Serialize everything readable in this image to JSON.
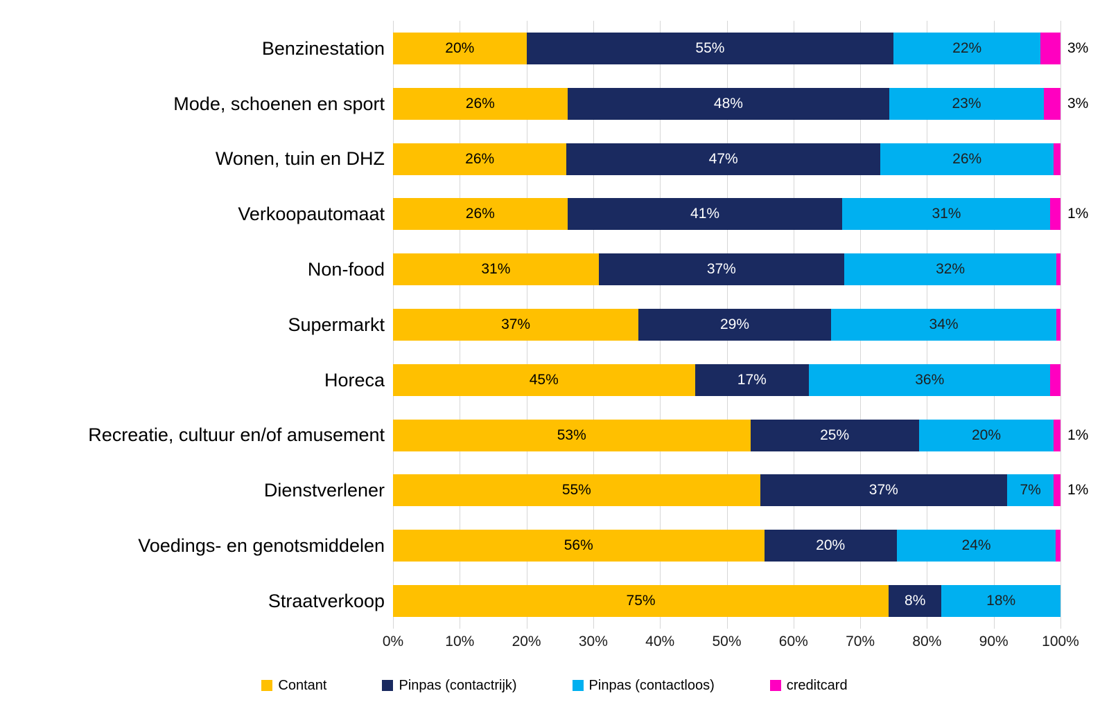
{
  "chart_data": {
    "type": "bar",
    "orientation": "horizontal",
    "stacked": true,
    "grid": true,
    "legend_position": "bottom",
    "title": "",
    "xlabel": "",
    "ylabel": "",
    "xlim": [
      0,
      100
    ],
    "x_ticks": [
      "0%",
      "10%",
      "20%",
      "30%",
      "40%",
      "50%",
      "60%",
      "70%",
      "80%",
      "90%",
      "100%"
    ],
    "categories": [
      "Benzinestation",
      "Mode, schoenen en sport",
      "Wonen, tuin en DHZ",
      "Verkoopautomaat",
      "Non-food",
      "Supermarkt",
      "Horeca",
      "Recreatie, cultuur en/of amusement",
      "Dienstverlener",
      "Voedings- en genotsmiddelen",
      "Straatverkoop"
    ],
    "series": [
      {
        "name": "Contant",
        "slug": "contant",
        "color": "#FFC000",
        "label_color": "#000000",
        "values": [
          20,
          26,
          26,
          26,
          31,
          37,
          45,
          53,
          55,
          56,
          75
        ],
        "labels": [
          "20%",
          "26%",
          "26%",
          "26%",
          "31%",
          "37%",
          "45%",
          "53%",
          "55%",
          "56%",
          "75%"
        ]
      },
      {
        "name": "Pinpas (contactrijk)",
        "slug": "pinpas-contactrijk",
        "color": "#1A2A60",
        "label_color": "#FFFFFF",
        "values": [
          55,
          48,
          47,
          41,
          37,
          29,
          17,
          25,
          37,
          20,
          8
        ],
        "labels": [
          "55%",
          "48%",
          "47%",
          "41%",
          "37%",
          "29%",
          "17%",
          "25%",
          "37%",
          "20%",
          "8%"
        ]
      },
      {
        "name": "Pinpas (contactloos)",
        "slug": "pinpas-contactloos",
        "color": "#00B0F0",
        "label_color": "#1F1F1F",
        "values": [
          22,
          23,
          26,
          31,
          32,
          34,
          36,
          20,
          7,
          24,
          18
        ],
        "labels": [
          "22%",
          "23%",
          "26%",
          "31%",
          "32%",
          "34%",
          "36%",
          "20%",
          "7%",
          "24%",
          "18%"
        ]
      },
      {
        "name": "creditcard",
        "slug": "creditcard",
        "color": "#FF00C0",
        "label_color": "#000000",
        "values": [
          3,
          2.5,
          1,
          1.5,
          0.6,
          0.6,
          1.5,
          1,
          1,
          0.7,
          0
        ],
        "labels": [
          "",
          "",
          "",
          "",
          "",
          "",
          "",
          "",
          "",
          "",
          ""
        ],
        "outside_labels": [
          "3%",
          "3%",
          "",
          "1%",
          "",
          "",
          "",
          "1%",
          "1%",
          "",
          ""
        ]
      }
    ]
  }
}
